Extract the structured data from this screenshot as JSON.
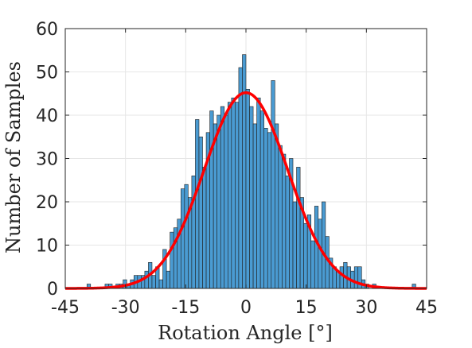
{
  "chart_data": {
    "type": "bar",
    "xlabel": "Rotation Angle [°]",
    "ylabel": "Number of Samples",
    "xlim": [
      -45,
      45
    ],
    "ylim": [
      0,
      60
    ],
    "xticks": [
      "-45",
      "-30",
      "-15",
      "0",
      "15",
      "30",
      "45"
    ],
    "xtick_values": [
      -45,
      -30,
      -15,
      0,
      15,
      30,
      45
    ],
    "yticks": [
      "0",
      "10",
      "20",
      "30",
      "40",
      "50",
      "60"
    ],
    "ytick_values": [
      0,
      10,
      20,
      30,
      40,
      50,
      60
    ],
    "grid": true,
    "bin_width": 0.9,
    "bin_centers": [
      -44.55,
      -43.65,
      -42.75,
      -41.85,
      -40.95,
      -40.05,
      -39.15,
      -38.25,
      -37.35,
      -36.45,
      -35.55,
      -34.65,
      -33.75,
      -32.85,
      -31.95,
      -31.05,
      -30.15,
      -29.25,
      -28.35,
      -27.45,
      -26.55,
      -25.65,
      -24.75,
      -23.85,
      -22.95,
      -22.05,
      -21.15,
      -20.25,
      -19.35,
      -18.45,
      -17.55,
      -16.65,
      -15.75,
      -14.85,
      -13.95,
      -13.05,
      -12.15,
      -11.25,
      -10.35,
      -9.45,
      -8.55,
      -7.65,
      -6.75,
      -5.85,
      -4.95,
      -4.05,
      -3.15,
      -2.25,
      -1.35,
      -0.45,
      0.45,
      1.35,
      2.25,
      3.15,
      4.05,
      4.95,
      5.85,
      6.75,
      7.65,
      8.55,
      9.45,
      10.35,
      11.25,
      12.15,
      13.05,
      13.95,
      14.85,
      15.75,
      16.65,
      17.55,
      18.45,
      19.35,
      20.25,
      21.15,
      22.05,
      22.95,
      23.85,
      24.75,
      25.65,
      26.55,
      27.45,
      28.35,
      29.25,
      30.15,
      31.05,
      31.95,
      32.85,
      33.75,
      34.65,
      35.55,
      36.45,
      37.35,
      38.25,
      39.15,
      40.05,
      40.95,
      41.85,
      42.75,
      43.65,
      44.55
    ],
    "counts": [
      0,
      0,
      0,
      0,
      0,
      0,
      1,
      0,
      0,
      0,
      0,
      1,
      1,
      0,
      1,
      1,
      2,
      1,
      2,
      3,
      3,
      3,
      4,
      6,
      3,
      5,
      2,
      9,
      4,
      13,
      14,
      16,
      23,
      24,
      21,
      26,
      39,
      35,
      28,
      36,
      41,
      38,
      40,
      42,
      40,
      43,
      44,
      43,
      51,
      54,
      46,
      42,
      38,
      44,
      41,
      37,
      36,
      48,
      38,
      33,
      31,
      26,
      30,
      20,
      28,
      21,
      15,
      17,
      11,
      19,
      16,
      20,
      12,
      7,
      5,
      4,
      5,
      6,
      5,
      4,
      5,
      5,
      2,
      1,
      0,
      1,
      0,
      0,
      0,
      0,
      0,
      0,
      0,
      0,
      0,
      0,
      1,
      0,
      0,
      0
    ],
    "bar_color": "#4a9bd2",
    "series": [
      {
        "type": "histogram"
      },
      {
        "type": "line",
        "color": "#ff0000",
        "mean": 0,
        "std": 10.4,
        "peak": 45.2
      }
    ]
  }
}
